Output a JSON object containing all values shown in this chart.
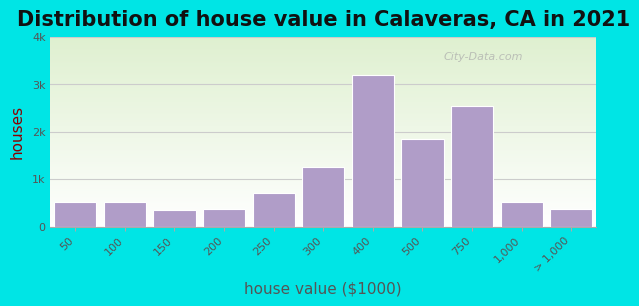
{
  "title": "Distribution of house value in Calaveras, CA in 2021",
  "xlabel": "house value ($1000)",
  "ylabel": "houses",
  "bar_labels": [
    "50",
    "100",
    "150",
    "200",
    "250",
    "300",
    "400",
    "500",
    "750",
    "1,000",
    "> 1,000"
  ],
  "bar_values": [
    520,
    510,
    350,
    380,
    700,
    1250,
    3200,
    1850,
    2550,
    520,
    380
  ],
  "bar_color": "#b09dc8",
  "bar_edge_color": "#ffffff",
  "background_outer": "#00e5e5",
  "background_plot_top": "#e8f5e0",
  "background_plot_bottom": "#ffffff",
  "ytick_labels": [
    "0",
    "1k",
    "2k",
    "3k",
    "4k"
  ],
  "ytick_values": [
    0,
    1000,
    2000,
    3000,
    4000
  ],
  "ylim": [
    0,
    4000
  ],
  "title_fontsize": 15,
  "axis_label_fontsize": 11,
  "tick_fontsize": 8,
  "watermark_text": "City-Data.com"
}
